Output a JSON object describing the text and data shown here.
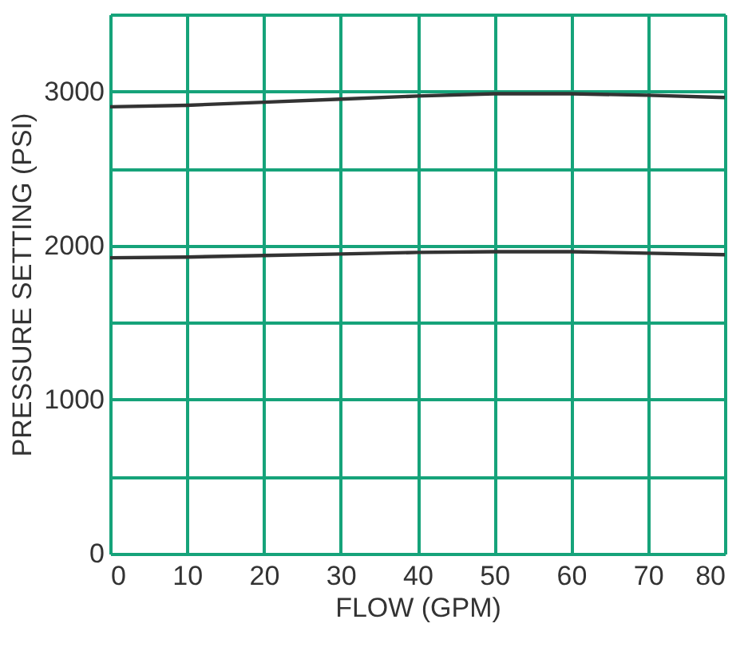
{
  "chart_data": {
    "type": "line",
    "xlabel": "FLOW (GPM)",
    "ylabel": "PRESSURE SETTING (PSI)",
    "x": [
      0,
      10,
      20,
      30,
      40,
      50,
      60,
      70,
      80
    ],
    "series": [
      {
        "color": "#333333",
        "values": [
          2900,
          2910,
          2930,
          2950,
          2970,
          2985,
          2985,
          2975,
          2960
        ]
      },
      {
        "color": "#333333",
        "values": [
          1920,
          1925,
          1935,
          1945,
          1955,
          1960,
          1960,
          1950,
          1940
        ]
      }
    ],
    "xlim": [
      0,
      80
    ],
    "xticks": [
      0,
      10,
      20,
      30,
      40,
      50,
      60,
      70,
      80
    ],
    "ylim": [
      0,
      3500
    ],
    "yticks": [
      0,
      {
        "value": 500,
        "label": null
      },
      1000,
      {
        "value": 1500,
        "label": null
      },
      2000,
      {
        "value": 2500,
        "label": null
      },
      3000,
      {
        "value": 3500,
        "label": null
      }
    ],
    "grid": true,
    "marker": "none",
    "line_style": "solid"
  }
}
